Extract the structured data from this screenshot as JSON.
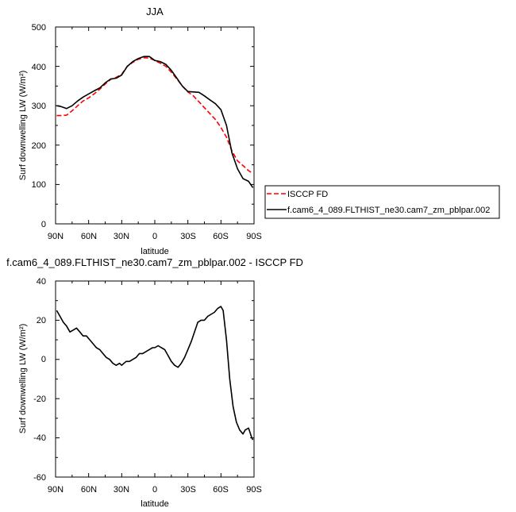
{
  "chart_data": [
    {
      "type": "line",
      "title": "JJA",
      "xlabel": "latitude",
      "ylabel": "Surf downwelling LW (W/m²)",
      "xlim": [
        90,
        -90
      ],
      "ylim": [
        0,
        500
      ],
      "xticks": [
        90,
        60,
        30,
        0,
        -30,
        -60,
        -90
      ],
      "xtick_labels": [
        "90N",
        "60N",
        "30N",
        "0",
        "30S",
        "60S",
        "90S"
      ],
      "yticks": [
        0,
        100,
        200,
        300,
        400,
        500
      ],
      "ytick_labels": [
        "0",
        "100",
        "200",
        "300",
        "400",
        "500"
      ],
      "legend_placement": "right",
      "series": [
        {
          "name": "ISCCP FD",
          "color": "#ff0000",
          "dash": "dashed",
          "x": [
            89,
            85,
            80,
            75,
            70,
            65,
            60,
            55,
            50,
            45,
            40,
            35,
            30,
            25,
            20,
            15,
            10,
            5,
            0,
            -5,
            -10,
            -15,
            -20,
            -25,
            -30,
            -35,
            -40,
            -45,
            -50,
            -55,
            -60,
            -65,
            -70,
            -75,
            -80,
            -85,
            -89
          ],
          "y": [
            275,
            275,
            276,
            287,
            300,
            312,
            320,
            330,
            342,
            355,
            367,
            372,
            380,
            400,
            410,
            418,
            422,
            421,
            415,
            408,
            400,
            385,
            368,
            350,
            335,
            325,
            310,
            295,
            280,
            265,
            245,
            220,
            185,
            160,
            148,
            135,
            128
          ]
        },
        {
          "name": "f.cam6_4_089.FLTHIST_ne30.cam7_zm_pblpar.002",
          "color": "#000000",
          "dash": "solid",
          "x": [
            89,
            85,
            80,
            75,
            70,
            65,
            60,
            55,
            50,
            45,
            40,
            35,
            30,
            25,
            20,
            15,
            10,
            5,
            0,
            -5,
            -10,
            -15,
            -20,
            -25,
            -30,
            -35,
            -40,
            -45,
            -50,
            -55,
            -60,
            -65,
            -70,
            -75,
            -80,
            -85,
            -89
          ],
          "y": [
            300,
            298,
            293,
            300,
            312,
            322,
            330,
            338,
            345,
            358,
            368,
            370,
            378,
            400,
            412,
            420,
            425,
            425,
            415,
            412,
            405,
            390,
            370,
            350,
            336,
            335,
            334,
            325,
            315,
            305,
            290,
            250,
            180,
            140,
            115,
            108,
            92
          ]
        }
      ]
    },
    {
      "type": "line",
      "title": "f.cam6_4_089.FLTHIST_ne30.cam7_zm_pblpar.002 - ISCCP FD",
      "xlabel": "latitude",
      "ylabel": "Surf downwelling LW (W/m²)",
      "xlim": [
        90,
        -90
      ],
      "ylim": [
        -60,
        40
      ],
      "xticks": [
        90,
        60,
        30,
        0,
        -30,
        -60,
        -90
      ],
      "xtick_labels": [
        "90N",
        "60N",
        "30N",
        "0",
        "30S",
        "60S",
        "90S"
      ],
      "yticks": [
        -60,
        -40,
        -20,
        0,
        20,
        40
      ],
      "ytick_labels": [
        "-60",
        "-40",
        "-20",
        "0",
        "20",
        "40"
      ],
      "series": [
        {
          "color": "#000000",
          "dash": "solid",
          "x": [
            89,
            86,
            83,
            80,
            77,
            74,
            71,
            68,
            65,
            62,
            59,
            56,
            53,
            50,
            47,
            44,
            41,
            38,
            35,
            32,
            30,
            28,
            26,
            23,
            20,
            17,
            14,
            11,
            8,
            5,
            2,
            0,
            -3,
            -6,
            -9,
            -12,
            -15,
            -18,
            -21,
            -24,
            -27,
            -30,
            -33,
            -36,
            -39,
            -42,
            -45,
            -48,
            -51,
            -54,
            -57,
            -60,
            -62,
            -65,
            -68,
            -71,
            -74,
            -77,
            -80,
            -82,
            -85,
            -88,
            -89
          ],
          "y": [
            25,
            22,
            19,
            17,
            14,
            15,
            16,
            14,
            12,
            12,
            10,
            8,
            6,
            5,
            3,
            1,
            0,
            -2,
            -3,
            -2,
            -3,
            -2,
            -1,
            -1,
            0,
            1,
            3,
            3,
            4,
            5,
            6,
            6,
            7,
            6,
            5,
            2,
            -1,
            -3,
            -4,
            -2,
            1,
            5,
            9,
            14,
            19,
            20,
            20,
            22,
            23,
            24,
            26,
            27,
            25,
            10,
            -10,
            -24,
            -32,
            -36,
            -38,
            -36,
            -35,
            -40,
            -41
          ]
        }
      ]
    }
  ]
}
